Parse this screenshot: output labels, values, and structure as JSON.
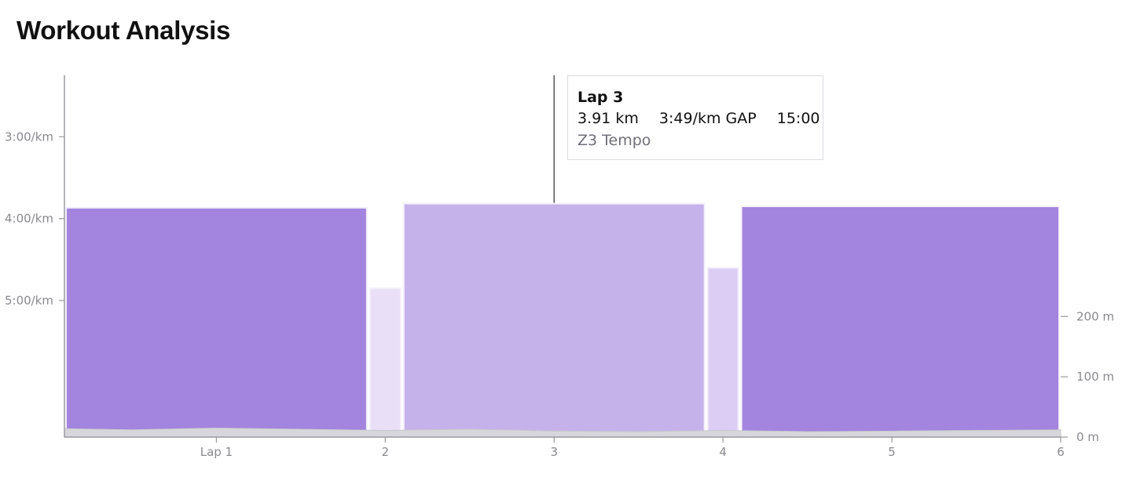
{
  "page": {
    "title": "Workout Analysis"
  },
  "tooltip": {
    "lap": "Lap 3",
    "distance": "3.91 km",
    "pace": "3:49/km GAP",
    "time": "15:00",
    "zone": "Z3 Tempo"
  },
  "chart_data": {
    "type": "bar",
    "title": "",
    "x_axis": {
      "range": [
        0.1,
        6
      ],
      "ticks": [
        {
          "value": 1,
          "label": "Lap 1"
        },
        {
          "value": 2,
          "label": "2"
        },
        {
          "value": 3,
          "label": "3"
        },
        {
          "value": 4,
          "label": "4"
        },
        {
          "value": 5,
          "label": "5"
        },
        {
          "value": 6,
          "label": "6"
        }
      ]
    },
    "y_axis_left": {
      "unit": "pace (sec/km)",
      "range": [
        400,
        135
      ],
      "ticks": [
        {
          "value": 180,
          "label": "3:00/km"
        },
        {
          "value": 240,
          "label": "4:00/km"
        },
        {
          "value": 300,
          "label": "5:00/km"
        }
      ]
    },
    "y_axis_right": {
      "unit": "elevation (m)",
      "range": [
        0,
        600
      ],
      "ticks": [
        {
          "value": 0,
          "label": "0 m"
        },
        {
          "value": 100,
          "label": "100 m"
        },
        {
          "value": 200,
          "label": "200 m"
        }
      ]
    },
    "laps": [
      {
        "lap": 1,
        "start": 0.1,
        "end": 1.9,
        "pace_sec": 232,
        "color": "#a384de"
      },
      {
        "lap": 2,
        "start": 1.9,
        "end": 2.1,
        "pace_sec": 291,
        "color": "#e9e0f8"
      },
      {
        "lap": 3,
        "start": 2.1,
        "end": 3.9,
        "pace_sec": 229,
        "color": "#c6b2ea"
      },
      {
        "lap": 4,
        "start": 3.9,
        "end": 4.1,
        "pace_sec": 276,
        "color": "#dccdf4"
      },
      {
        "lap": 5,
        "start": 4.1,
        "end": 6.0,
        "pace_sec": 231,
        "color": "#a384de"
      }
    ],
    "elevation": [
      [
        0.1,
        14
      ],
      [
        0.5,
        12
      ],
      [
        1.0,
        15
      ],
      [
        1.5,
        13
      ],
      [
        2.0,
        11
      ],
      [
        2.5,
        13
      ],
      [
        3.0,
        10
      ],
      [
        3.5,
        9
      ],
      [
        4.0,
        11
      ],
      [
        4.5,
        9
      ],
      [
        5.0,
        10
      ],
      [
        5.5,
        11
      ],
      [
        6.0,
        12
      ]
    ],
    "cursor_x": 3.0,
    "grid": false
  }
}
